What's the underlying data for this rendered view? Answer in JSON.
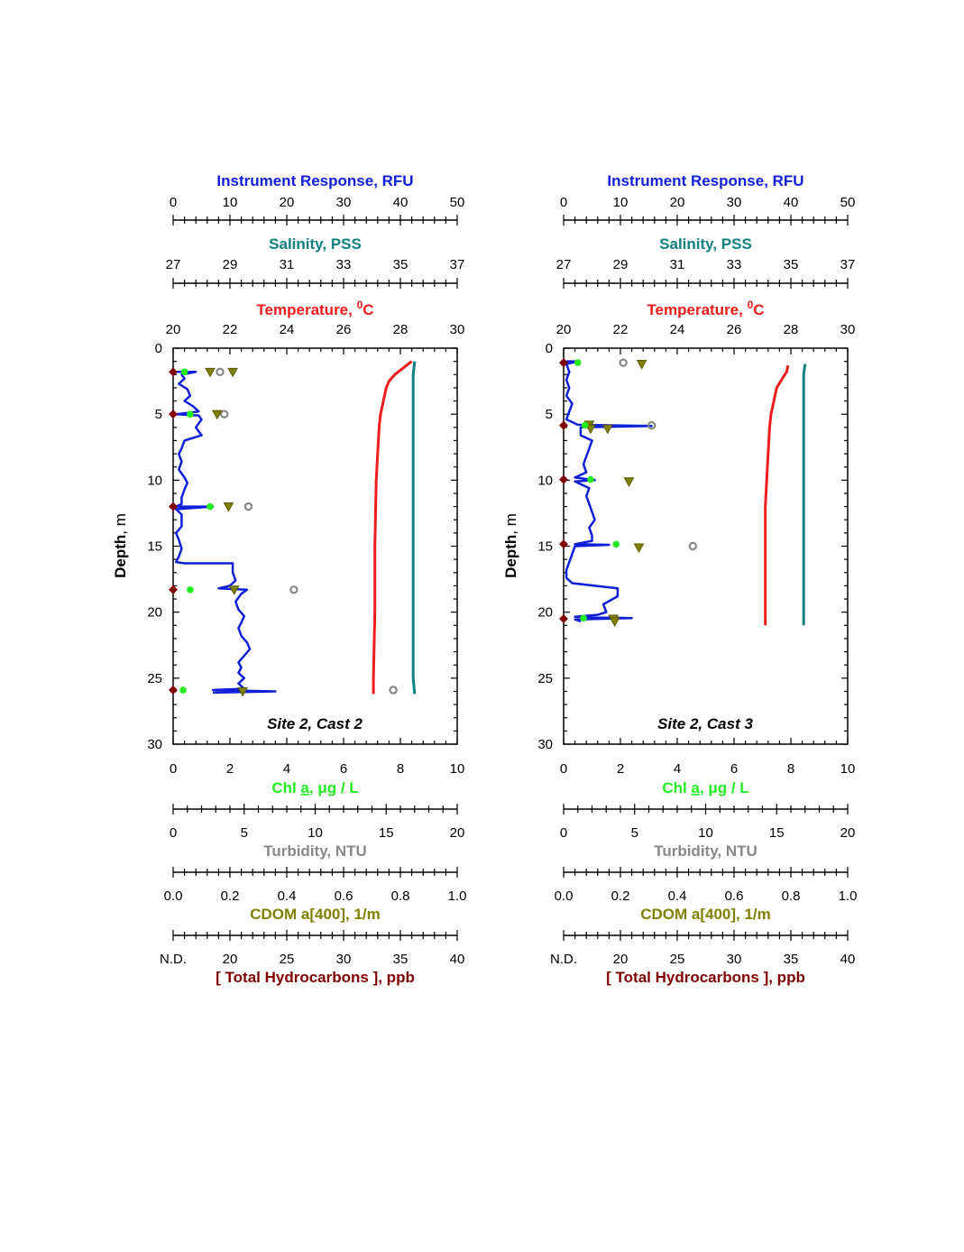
{
  "colors": {
    "rfu": "#1020d8",
    "salinity": "#108080",
    "temperature": "#ee1c1c",
    "chl": "#22ee22",
    "turbidity": "#888888",
    "cdom": "#808000",
    "hydrocarbons": "#800000",
    "axis": "#000000"
  },
  "axis_titles": {
    "rfu": {
      "main": "Instrument Response",
      "unit": ", RFU"
    },
    "salinity": {
      "main": "Salinity",
      "unit": ", PSS"
    },
    "temperature": {
      "main": "Temperature, ",
      "sup": "0",
      "unit": "C"
    },
    "depth": {
      "main": "Depth",
      "unit": ", m"
    },
    "chl": {
      "a": "Chl ",
      "b": "a",
      "c": ", μg / L"
    },
    "turbidity": {
      "main": "Turbidity",
      "unit": ", NTU"
    },
    "cdom": {
      "main": "CDOM a[400], 1/m"
    },
    "hydrocarbons": {
      "main": "[ Total Hydrocarbons ]",
      "unit": ", ppb"
    }
  },
  "axes": {
    "rfu": {
      "range": [
        0,
        50
      ],
      "ticks": [
        "0",
        "10",
        "20",
        "30",
        "40",
        "50"
      ]
    },
    "salinity": {
      "range": [
        27,
        37
      ],
      "ticks": [
        "27",
        "29",
        "31",
        "33",
        "35",
        "37"
      ]
    },
    "temperature": {
      "range": [
        20,
        30
      ],
      "ticks": [
        "20",
        "22",
        "24",
        "26",
        "28",
        "30"
      ]
    },
    "depth": {
      "range": [
        0,
        30
      ],
      "inverted": true,
      "ticks": [
        "0",
        "5",
        "10",
        "15",
        "20",
        "25",
        "30"
      ]
    },
    "chl": {
      "range": [
        0,
        10
      ],
      "ticks": [
        "0",
        "2",
        "4",
        "6",
        "8",
        "10"
      ]
    },
    "turbidity": {
      "range": [
        0,
        20
      ],
      "ticks": [
        "0",
        "5",
        "10",
        "15",
        "20"
      ]
    },
    "cdom": {
      "range": [
        0,
        1
      ],
      "ticks": [
        "0.0",
        "0.2",
        "0.4",
        "0.6",
        "0.8",
        "1.0"
      ]
    },
    "hydrocarbons": {
      "range": [
        15,
        40
      ],
      "ticks": [
        "N.D.",
        "20",
        "25",
        "30",
        "35",
        "40"
      ]
    }
  },
  "chart_data": [
    {
      "type": "line",
      "title": "Site 2, Cast 2",
      "temperature_profile": [
        [
          28.4,
          1
        ],
        [
          28.1,
          1.5
        ],
        [
          27.8,
          2
        ],
        [
          27.6,
          2.5
        ],
        [
          27.5,
          3
        ],
        [
          27.4,
          4
        ],
        [
          27.3,
          5
        ],
        [
          27.25,
          6
        ],
        [
          27.2,
          8
        ],
        [
          27.15,
          10
        ],
        [
          27.1,
          15
        ],
        [
          27.1,
          20
        ],
        [
          27.05,
          25
        ],
        [
          27.05,
          26.2
        ]
      ],
      "salinity_profile": [
        [
          35.5,
          1
        ],
        [
          35.45,
          2
        ],
        [
          35.45,
          5
        ],
        [
          35.45,
          10
        ],
        [
          35.45,
          15
        ],
        [
          35.45,
          20
        ],
        [
          35.45,
          25
        ],
        [
          35.5,
          26.2
        ]
      ],
      "rfu_profile": [
        [
          0.5,
          1.8
        ],
        [
          4,
          1.8
        ],
        [
          1.5,
          2
        ],
        [
          2,
          2.3
        ],
        [
          1,
          2.7
        ],
        [
          2.5,
          3.1
        ],
        [
          3,
          3.6
        ],
        [
          2,
          4
        ],
        [
          3.5,
          4.4
        ],
        [
          4.5,
          4.8
        ],
        [
          0.5,
          5
        ],
        [
          4.5,
          5.1
        ],
        [
          5,
          5.4
        ],
        [
          4,
          6
        ],
        [
          5,
          6.6
        ],
        [
          2,
          7
        ],
        [
          1.5,
          7.6
        ],
        [
          1,
          8
        ],
        [
          1.5,
          8.6
        ],
        [
          1,
          9.2
        ],
        [
          2,
          9.8
        ],
        [
          2.5,
          10.2
        ],
        [
          2,
          10.7
        ],
        [
          1.5,
          11.3
        ],
        [
          1.5,
          11.8
        ],
        [
          0.5,
          12
        ],
        [
          7,
          12
        ],
        [
          0.5,
          12.2
        ],
        [
          1.5,
          12.6
        ],
        [
          1.5,
          13
        ],
        [
          1.5,
          13.5
        ],
        [
          0.5,
          14
        ],
        [
          1,
          14.5
        ],
        [
          1.5,
          15.2
        ],
        [
          1,
          15.8
        ],
        [
          0.5,
          16.2
        ],
        [
          2,
          16.3
        ],
        [
          10.5,
          16.3
        ],
        [
          10.5,
          17
        ],
        [
          11,
          17.6
        ],
        [
          10,
          18
        ],
        [
          8,
          18.2
        ],
        [
          13,
          18.3
        ],
        [
          12,
          18.6
        ],
        [
          11,
          19.2
        ],
        [
          11.5,
          19.8
        ],
        [
          12.5,
          20.3
        ],
        [
          12,
          20.8
        ],
        [
          11.5,
          21.2
        ],
        [
          12,
          21.8
        ],
        [
          13,
          22.3
        ],
        [
          13.5,
          22.8
        ],
        [
          12.5,
          23.3
        ],
        [
          11.5,
          23.8
        ],
        [
          12,
          24.2
        ],
        [
          11.5,
          24.6
        ],
        [
          12.5,
          25
        ],
        [
          11.5,
          25.4
        ],
        [
          12.5,
          25.8
        ],
        [
          7,
          25.9
        ],
        [
          18,
          26
        ],
        [
          7,
          26.1
        ]
      ],
      "chl": [
        [
          0.4,
          1.8
        ],
        [
          0.6,
          5
        ],
        [
          1.3,
          12
        ],
        [
          0.6,
          18.3
        ],
        [
          0.35,
          25.9
        ]
      ],
      "turbidity": [
        [
          3.3,
          1.8
        ],
        [
          3.6,
          5
        ],
        [
          5.3,
          12
        ],
        [
          8.5,
          18.3
        ],
        [
          15.5,
          25.9
        ]
      ],
      "cdom": [
        [
          0.13,
          1.8
        ],
        [
          0.21,
          1.8
        ],
        [
          0.155,
          5
        ],
        [
          0.195,
          12
        ],
        [
          0.215,
          18.3
        ],
        [
          0.245,
          26
        ]
      ],
      "hydrocarbons": [
        [
          "N.D.",
          1.8
        ],
        [
          "N.D.",
          5
        ],
        [
          "N.D.",
          12
        ],
        [
          "N.D.",
          18.3
        ],
        [
          "N.D.",
          25.9
        ]
      ]
    },
    {
      "type": "line",
      "title": "Site 2, Cast 3",
      "temperature_profile": [
        [
          27.9,
          1.3
        ],
        [
          27.85,
          1.8
        ],
        [
          27.7,
          2.3
        ],
        [
          27.5,
          3
        ],
        [
          27.4,
          4
        ],
        [
          27.3,
          5
        ],
        [
          27.25,
          6
        ],
        [
          27.2,
          8
        ],
        [
          27.15,
          10
        ],
        [
          27.1,
          12
        ],
        [
          27.1,
          15
        ],
        [
          27.1,
          20
        ],
        [
          27.1,
          21
        ]
      ],
      "salinity_profile": [
        [
          35.5,
          1.2
        ],
        [
          35.45,
          2
        ],
        [
          35.45,
          5
        ],
        [
          35.45,
          10
        ],
        [
          35.45,
          15
        ],
        [
          35.45,
          20
        ],
        [
          35.45,
          21
        ]
      ],
      "rfu_profile": [
        [
          0.5,
          1
        ],
        [
          2.5,
          1
        ],
        [
          0.5,
          1.2
        ],
        [
          1,
          1.8
        ],
        [
          0.5,
          2.4
        ],
        [
          1,
          3
        ],
        [
          0.5,
          3.6
        ],
        [
          1.5,
          4.2
        ],
        [
          1,
          4.8
        ],
        [
          0.5,
          5.4
        ],
        [
          2.5,
          5.8
        ],
        [
          15.5,
          5.9
        ],
        [
          3,
          6
        ],
        [
          3,
          6.6
        ],
        [
          5,
          7
        ],
        [
          4.5,
          7.6
        ],
        [
          4,
          8.2
        ],
        [
          3.5,
          8.8
        ],
        [
          4,
          9.4
        ],
        [
          2,
          9.8
        ],
        [
          5.5,
          10
        ],
        [
          2,
          10.1
        ],
        [
          4.5,
          10.6
        ],
        [
          4,
          11.2
        ],
        [
          4.5,
          11.8
        ],
        [
          5,
          12.4
        ],
        [
          5.5,
          13
        ],
        [
          4.5,
          13.6
        ],
        [
          5,
          14.2
        ],
        [
          5,
          14.6
        ],
        [
          2,
          14.85
        ],
        [
          8,
          14.9
        ],
        [
          2,
          15
        ],
        [
          1.5,
          15.6
        ],
        [
          1,
          16.2
        ],
        [
          0.5,
          16.8
        ],
        [
          0.5,
          17.4
        ],
        [
          1.5,
          17.8
        ],
        [
          9.5,
          18.2
        ],
        [
          9.5,
          18.8
        ],
        [
          7,
          19.4
        ],
        [
          7.5,
          20
        ],
        [
          6,
          20.2
        ],
        [
          2,
          20.35
        ],
        [
          12,
          20.45
        ],
        [
          2,
          20.55
        ],
        [
          3,
          20.7
        ]
      ],
      "chl": [
        [
          0.5,
          1.1
        ],
        [
          0.75,
          5.85
        ],
        [
          0.95,
          9.95
        ],
        [
          1.85,
          14.85
        ],
        [
          0.7,
          20.45
        ]
      ],
      "turbidity": [
        [
          4.2,
          1.1
        ],
        [
          6.2,
          5.85
        ],
        [
          9.1,
          15
        ]
      ],
      "cdom": [
        [
          0.275,
          1.2
        ],
        [
          0.09,
          5.8
        ],
        [
          0.095,
          6.1
        ],
        [
          0.155,
          6.1
        ],
        [
          0.23,
          10.1
        ],
        [
          0.265,
          15.1
        ],
        [
          0.175,
          20.5
        ],
        [
          0.18,
          20.7
        ]
      ],
      "hydrocarbons": [
        [
          "N.D.",
          1.1
        ],
        [
          "N.D.",
          5.85
        ],
        [
          "N.D.",
          9.95
        ],
        [
          "N.D.",
          14.85
        ],
        [
          "N.D.",
          20.5
        ]
      ]
    }
  ]
}
